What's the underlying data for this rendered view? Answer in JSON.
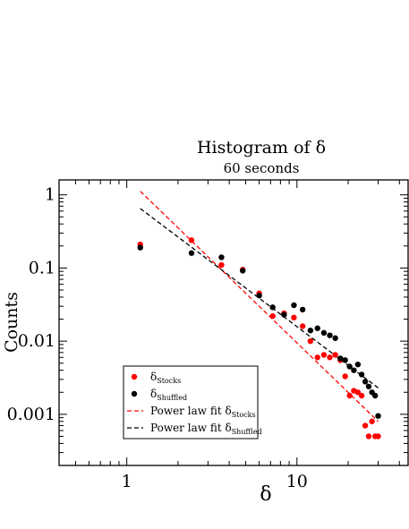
{
  "chart_data": {
    "type": "scatter",
    "title": "Histogram of δ",
    "subtitle": "60 seconds",
    "xlabel": "δ",
    "ylabel": "Counts",
    "xscale": "log",
    "yscale": "log",
    "xlim": [
      0.4,
      45
    ],
    "ylim": [
      0.0002,
      1.6
    ],
    "x_ticks": [
      {
        "value": 1,
        "label": "1"
      },
      {
        "value": 10,
        "label": "10"
      }
    ],
    "y_ticks": [
      {
        "value": 1,
        "label": "1"
      },
      {
        "value": 0.1,
        "label": "0.1"
      },
      {
        "value": 0.01,
        "label": "0.01"
      },
      {
        "value": 0.001,
        "label": "0.001"
      }
    ],
    "grid": false,
    "legend_position": "bottom-left",
    "series": [
      {
        "name": "δStocks",
        "name_main": "δ",
        "name_sub": "Stocks",
        "kind": "points",
        "color": "#ff0000",
        "points": [
          [
            1.2,
            0.21
          ],
          [
            2.4,
            0.24
          ],
          [
            3.6,
            0.11
          ],
          [
            4.8,
            0.095
          ],
          [
            6.0,
            0.045
          ],
          [
            7.2,
            0.022
          ],
          [
            8.4,
            0.024
          ],
          [
            9.6,
            0.021
          ],
          [
            10.8,
            0.016
          ],
          [
            12.0,
            0.01
          ],
          [
            13.2,
            0.006
          ],
          [
            14.4,
            0.0065
          ],
          [
            15.6,
            0.006
          ],
          [
            16.8,
            0.0065
          ],
          [
            18.0,
            0.0055
          ],
          [
            19.2,
            0.0033
          ],
          [
            20.4,
            0.0018
          ],
          [
            21.6,
            0.0021
          ],
          [
            22.8,
            0.002
          ],
          [
            24.0,
            0.0018
          ],
          [
            25.2,
            0.0007
          ],
          [
            26.4,
            0.0005
          ],
          [
            27.6,
            0.0008
          ],
          [
            28.8,
            0.0005
          ],
          [
            30.0,
            0.0005
          ]
        ]
      },
      {
        "name": "δShuffled",
        "name_main": "δ",
        "name_sub": "Shuffled",
        "kind": "points",
        "color": "#000000",
        "points": [
          [
            1.2,
            0.19
          ],
          [
            2.4,
            0.16
          ],
          [
            3.6,
            0.14
          ],
          [
            4.8,
            0.092
          ],
          [
            6.0,
            0.042
          ],
          [
            7.2,
            0.029
          ],
          [
            8.4,
            0.023
          ],
          [
            9.6,
            0.031
          ],
          [
            10.8,
            0.027
          ],
          [
            12.0,
            0.014
          ],
          [
            13.2,
            0.015
          ],
          [
            14.4,
            0.013
          ],
          [
            15.6,
            0.012
          ],
          [
            16.8,
            0.011
          ],
          [
            18.0,
            0.0058
          ],
          [
            19.2,
            0.0055
          ],
          [
            20.4,
            0.0045
          ],
          [
            21.6,
            0.004
          ],
          [
            22.8,
            0.0048
          ],
          [
            24.0,
            0.0035
          ],
          [
            25.2,
            0.0028
          ],
          [
            26.4,
            0.0024
          ],
          [
            27.6,
            0.002
          ],
          [
            28.8,
            0.0018
          ],
          [
            30.0,
            0.00095
          ]
        ]
      },
      {
        "name": "Power law fit δStocks",
        "name_main": "Power law fit δ",
        "name_sub": "Stocks",
        "kind": "dashed-line",
        "color": "#ff0000",
        "points": [
          [
            1.2,
            1.12
          ],
          [
            30.0,
            0.0008
          ]
        ]
      },
      {
        "name": "Power law fit δShuffled",
        "name_main": "Power law fit δ",
        "name_sub": "Shuffled",
        "kind": "dashed-line",
        "color": "#000000",
        "points": [
          [
            1.2,
            0.65
          ],
          [
            30.0,
            0.0023
          ]
        ]
      }
    ]
  }
}
